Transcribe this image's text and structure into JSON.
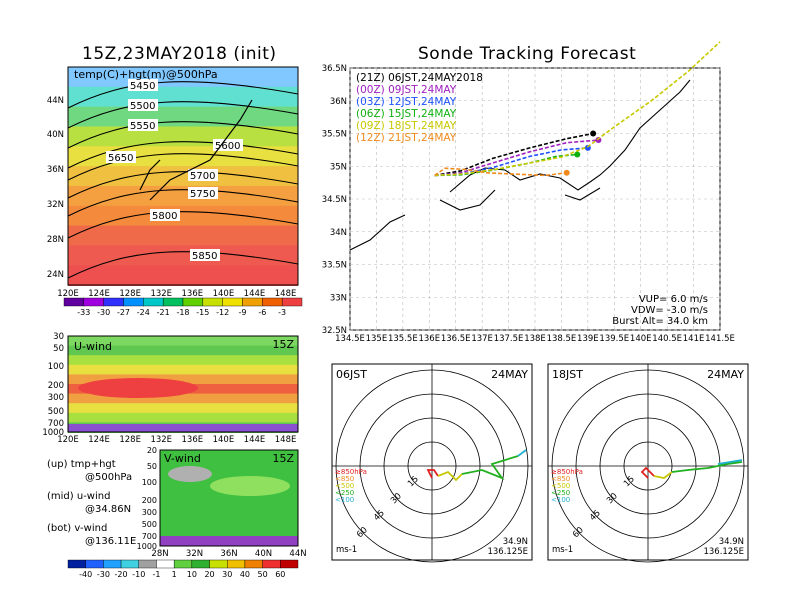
{
  "left": {
    "title": "15Z,23MAY2018 (init)",
    "map": {
      "panel_label": "temp(C)+hgt(m)@500hPa",
      "lat_ticks": [
        "44N",
        "40N",
        "36N",
        "32N",
        "28N",
        "24N"
      ],
      "lon_ticks": [
        "120E",
        "124E",
        "128E",
        "132E",
        "136E",
        "140E",
        "144E",
        "148E"
      ],
      "contours": [
        "5450",
        "5500",
        "5550",
        "5600",
        "5650",
        "5700",
        "5750",
        "5800",
        "5850"
      ]
    },
    "temp_colorbar": [
      "-33",
      "-30",
      "-27",
      "-24",
      "-21",
      "-18",
      "-15",
      "-12",
      "-9",
      "-6",
      "-3"
    ],
    "uwind": {
      "label": "U-wind",
      "time": "15Z",
      "p_ticks": [
        "30",
        "50",
        "100",
        "200",
        "300",
        "500",
        "700",
        "1000"
      ],
      "lon_ticks": [
        "120E",
        "124E",
        "128E",
        "132E",
        "136E",
        "140E",
        "144E",
        "148E"
      ]
    },
    "vwind": {
      "label": "V-wind",
      "time": "15Z",
      "p_ticks": [
        "20",
        "50",
        "100",
        "200",
        "300",
        "500",
        "700",
        "1000"
      ],
      "lat_ticks": [
        "28N",
        "32N",
        "36N",
        "40N",
        "44N"
      ]
    },
    "wind_colorbar": [
      "-40",
      "-30",
      "-20",
      "-10",
      "-1",
      "1",
      "10",
      "20",
      "30",
      "40",
      "50",
      "60"
    ],
    "notes": [
      {
        "tag": "(up)",
        "line1": "tmp+hgt",
        "line2": "@500hPa"
      },
      {
        "tag": "(mid)",
        "line1": "u-wind",
        "line2": "@34.86N"
      },
      {
        "tag": "(bot)",
        "line1": "v-wind",
        "line2": "@136.11E"
      }
    ]
  },
  "right": {
    "title": "Sonde Tracking Forecast",
    "lat_ticks": [
      "36.5N",
      "36N",
      "35.5N",
      "35N",
      "34.5N",
      "34N",
      "33.5N",
      "33N",
      "32.5N"
    ],
    "lon_ticks": [
      "134.5E",
      "135E",
      "135.5E",
      "136E",
      "136.5E",
      "137E",
      "137.5E",
      "138E",
      "138.5E",
      "139E",
      "139.5E",
      "140E",
      "140.5E",
      "141E",
      "141.5E"
    ],
    "legend": [
      {
        "code": "(21Z)",
        "label": "06JST,24MAY2018",
        "color": "#000000"
      },
      {
        "code": "(00Z)",
        "label": "09JST,24MAY",
        "color": "#a020c0"
      },
      {
        "code": "(03Z)",
        "label": "12JST,24MAY",
        "color": "#1e50ff"
      },
      {
        "code": "(06Z)",
        "label": "15JST,24MAY",
        "color": "#10b010"
      },
      {
        "code": "(09Z)",
        "label": "18JST,24MAY",
        "color": "#c8c800"
      },
      {
        "code": "(12Z)",
        "label": "21JST,24MAY",
        "color": "#f08a1e"
      }
    ],
    "params": {
      "vup": "VUP=  6.0 m/s",
      "vdw": "VDW= -3.0 m/s",
      "burst": "Burst Alt= 34.0 km"
    }
  },
  "polar": [
    {
      "time": "06JST",
      "date": "24MAY",
      "lat": "34.9N",
      "lon": "136.125E",
      "unit": "ms-1",
      "rings": [
        "15",
        "30",
        "45",
        "60"
      ],
      "hodo_legend": [
        {
          "t": "≥850hPa",
          "c": "#e02020"
        },
        {
          "t": "<850",
          "c": "#f08a1e"
        },
        {
          "t": "<500",
          "c": "#c8c800"
        },
        {
          "t": "<250",
          "c": "#20b020"
        },
        {
          "t": "<100",
          "c": "#20b0d0"
        }
      ]
    },
    {
      "time": "18JST",
      "date": "24MAY",
      "lat": "34.9N",
      "lon": "136.125E",
      "unit": "ms-1",
      "rings": [
        "15",
        "30",
        "45",
        "60"
      ],
      "hodo_legend": [
        {
          "t": "≥850hPa",
          "c": "#e02020"
        },
        {
          "t": "<850",
          "c": "#f08a1e"
        },
        {
          "t": "<500",
          "c": "#c8c800"
        },
        {
          "t": "<250",
          "c": "#20b020"
        },
        {
          "t": "<100",
          "c": "#20b0d0"
        }
      ]
    }
  ],
  "chart_data": [
    {
      "type": "heatmap",
      "title": "15Z,23MAY2018 (init)",
      "subtitle": "temp(C)+hgt(m)@500hPa",
      "xlabel": "",
      "ylabel": "",
      "x_ticks": [
        "120E",
        "124E",
        "128E",
        "132E",
        "136E",
        "140E",
        "144E",
        "148E"
      ],
      "y_ticks": [
        "24N",
        "28N",
        "32N",
        "36N",
        "40N",
        "44N"
      ],
      "colorbar": [
        -33,
        -30,
        -27,
        -24,
        -21,
        -18,
        -15,
        -12,
        -9,
        -6,
        -3
      ],
      "contour_levels": [
        5450,
        5500,
        5550,
        5600,
        5650,
        5700,
        5750,
        5800,
        5850
      ]
    },
    {
      "type": "heatmap",
      "title": "U-wind",
      "subtitle": "15Z",
      "xlabel": "",
      "ylabel": "",
      "x_ticks": [
        "120E",
        "124E",
        "128E",
        "132E",
        "136E",
        "140E",
        "144E",
        "148E"
      ],
      "y_ticks": [
        30,
        50,
        100,
        200,
        300,
        500,
        700,
        1000
      ]
    },
    {
      "type": "heatmap",
      "title": "V-wind",
      "subtitle": "15Z",
      "xlabel": "",
      "ylabel": "",
      "x_ticks": [
        "28N",
        "32N",
        "36N",
        "40N",
        "44N"
      ],
      "y_ticks": [
        20,
        50,
        100,
        200,
        300,
        500,
        700,
        1000
      ],
      "colorbar": [
        -40,
        -30,
        -20,
        -10,
        -1,
        1,
        10,
        20,
        30,
        40,
        50,
        60
      ]
    },
    {
      "type": "line",
      "title": "Sonde Tracking Forecast",
      "xlabel": "",
      "ylabel": "",
      "xlim": [
        134.5,
        141.5
      ],
      "ylim": [
        32.5,
        36.5
      ],
      "series": [
        {
          "name": "(21Z) 06JST,24MAY2018",
          "x": [
            136.1,
            136.6,
            137.2,
            137.9,
            138.6,
            139.1
          ],
          "y": [
            34.86,
            34.93,
            35.12,
            35.28,
            35.42,
            35.5
          ]
        },
        {
          "name": "(00Z) 09JST,24MAY",
          "x": [
            136.1,
            136.6,
            137.2,
            137.9,
            138.6,
            139.2
          ],
          "y": [
            34.86,
            34.9,
            35.05,
            35.22,
            35.36,
            35.4
          ]
        },
        {
          "name": "(03Z) 12JST,24MAY",
          "x": [
            136.1,
            136.6,
            137.2,
            137.9,
            138.5,
            139.0
          ],
          "y": [
            34.86,
            34.88,
            34.98,
            35.15,
            35.25,
            35.28
          ]
        },
        {
          "name": "(06Z) 15JST,24MAY",
          "x": [
            136.1,
            136.6,
            137.2,
            137.9,
            138.4,
            138.8
          ],
          "y": [
            34.86,
            34.87,
            34.94,
            35.05,
            35.15,
            35.18
          ]
        },
        {
          "name": "(09Z) 18JST,24MAY",
          "x": [
            136.1,
            136.6,
            137.3,
            137.9,
            138.5,
            139.0,
            139.5,
            140.2,
            140.9,
            141.5
          ],
          "y": [
            34.86,
            34.88,
            34.96,
            35.05,
            35.14,
            35.3,
            35.6,
            36.0,
            36.45,
            36.9
          ]
        },
        {
          "name": "(12Z) 21JST,24MAY",
          "x": [
            136.1,
            136.3,
            136.7,
            137.1,
            137.6,
            138.2,
            138.6
          ],
          "y": [
            34.86,
            34.97,
            34.95,
            34.9,
            34.88,
            34.86,
            34.9
          ]
        }
      ]
    }
  ]
}
